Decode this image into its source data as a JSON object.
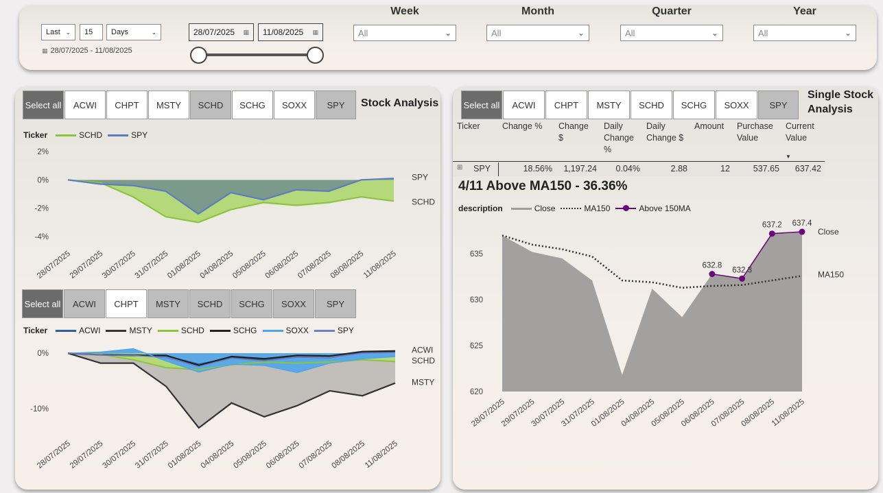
{
  "filters": {
    "relative": {
      "period": "Last",
      "count": "15",
      "unit": "Days",
      "range_text": "28/07/2025 - 11/08/2025"
    },
    "date_from": "28/07/2025",
    "date_to": "11/08/2025",
    "slicers": [
      {
        "title": "Week",
        "value": "All"
      },
      {
        "title": "Month",
        "value": "All"
      },
      {
        "title": "Quarter",
        "value": "All"
      },
      {
        "title": "Year",
        "value": "All"
      }
    ]
  },
  "tickers": [
    "Select all",
    "ACWI",
    "CHPT",
    "MSTY",
    "SCHD",
    "SCHG",
    "SOXX",
    "SPY"
  ],
  "stock_analysis": {
    "title": "Stock Analysis",
    "selected": [
      "SCHD",
      "SPY"
    ],
    "legend_label": "Ticker",
    "chart_data": {
      "type": "area",
      "categories": [
        "28/07/2025",
        "29/07/2025",
        "30/07/2025",
        "31/07/2025",
        "01/08/2025",
        "04/08/2025",
        "05/08/2025",
        "06/08/2025",
        "07/08/2025",
        "08/08/2025",
        "11/08/2025"
      ],
      "y_ticks": [
        "2%",
        "0%",
        "-2%",
        "-4%"
      ],
      "ylim": [
        -4,
        2
      ],
      "series": [
        {
          "name": "SCHD",
          "color": "#8bc53f",
          "values": [
            0,
            -0.2,
            -1.2,
            -2.6,
            -3.0,
            -2.1,
            -1.6,
            -1.8,
            -1.6,
            -1.2,
            -1.5
          ]
        },
        {
          "name": "SPY",
          "color": "#5b7dc0",
          "values": [
            0,
            -0.3,
            -0.4,
            -0.8,
            -2.4,
            -0.9,
            -1.4,
            -0.7,
            -0.8,
            0.0,
            0.1
          ]
        }
      ],
      "end_labels": [
        "SPY",
        "SCHD"
      ]
    }
  },
  "multi_analysis": {
    "selected": [
      "Select all",
      "ACWI",
      "MSTY",
      "SCHD",
      "SCHG",
      "SOXX",
      "SPY"
    ],
    "legend_label": "Ticker",
    "chart_data": {
      "type": "area",
      "categories": [
        "28/07/2025",
        "29/07/2025",
        "30/07/2025",
        "31/07/2025",
        "01/08/2025",
        "04/08/2025",
        "05/08/2025",
        "06/08/2025",
        "07/08/2025",
        "08/08/2025",
        "11/08/2025"
      ],
      "y_ticks": [
        "0%",
        "-10%"
      ],
      "ylim": [
        -14,
        2
      ],
      "series": [
        {
          "name": "ACWI",
          "color": "#2e5f9e",
          "values": [
            0,
            -0.2,
            -0.3,
            -0.5,
            -2.0,
            -0.8,
            -1.2,
            -0.7,
            -0.8,
            0.1,
            0.2
          ]
        },
        {
          "name": "MSTY",
          "color": "#333333",
          "values": [
            0,
            -1.8,
            -1.8,
            -6.0,
            -13.5,
            -9.0,
            -11.5,
            -9.5,
            -6.8,
            -7.7,
            -5.4
          ]
        },
        {
          "name": "SCHD",
          "color": "#8bc53f",
          "values": [
            0,
            -0.2,
            -1.2,
            -2.6,
            -3.0,
            -2.1,
            -1.6,
            -1.8,
            -1.6,
            -1.2,
            -1.5
          ]
        },
        {
          "name": "SCHG",
          "color": "#222222",
          "values": [
            0,
            -0.3,
            -0.4,
            -0.4,
            -2.2,
            -0.6,
            -1.0,
            -0.4,
            -0.5,
            0.3,
            0.4
          ]
        },
        {
          "name": "SOXX",
          "color": "#4ea6ea",
          "values": [
            0,
            0.2,
            0.8,
            -1.4,
            -3.4,
            -2.0,
            -2.2,
            -3.5,
            -1.8,
            -1.0,
            -0.6
          ]
        },
        {
          "name": "SPY",
          "color": "#6f7fc6",
          "values": [
            0,
            -0.3,
            -0.4,
            -0.8,
            -2.4,
            -0.9,
            -1.4,
            -0.7,
            -0.8,
            0.0,
            0.1
          ]
        }
      ],
      "end_labels": [
        "ACWI",
        "SCHD",
        "MSTY"
      ]
    }
  },
  "single_stock": {
    "title": "Single Stock Analysis",
    "selected": "SPY",
    "table": {
      "headers": [
        "Ticker",
        "Change %",
        "Change $",
        "Daily Change %",
        "Daily Change $",
        "Amount",
        "Purchase Value",
        "Current Value"
      ],
      "row": {
        "expand": "⊞",
        "ticker": "SPY",
        "change_pct": "18.56%",
        "change_usd": "1,197.24",
        "daily_change_pct": "0.04%",
        "daily_change_usd": "2.88",
        "amount": "12",
        "purchase_value": "537.65",
        "current_value": "637.42"
      }
    },
    "heading": "4/11 Above MA150 - 36.36%",
    "legend_label": "description",
    "chart_data": {
      "type": "area",
      "categories": [
        "28/07/2025",
        "29/07/2025",
        "30/07/2025",
        "31/07/2025",
        "01/08/2025",
        "04/08/2025",
        "05/08/2025",
        "06/08/2025",
        "07/08/2025",
        "08/08/2025",
        "11/08/2025"
      ],
      "y_ticks": [
        "635",
        "630",
        "625",
        "620"
      ],
      "ylim": [
        620,
        638
      ],
      "series": [
        {
          "name": "Close",
          "color": "#9e9c9a",
          "values": [
            637.0,
            635.2,
            634.5,
            632.1,
            621.8,
            631.2,
            628.1,
            632.8,
            632.3,
            637.2,
            637.4
          ]
        },
        {
          "name": "MA150",
          "color": "#333333",
          "values": [
            637.0,
            636.0,
            635.5,
            634.7,
            632.1,
            631.9,
            631.3,
            631.5,
            631.6,
            632.1,
            632.6
          ]
        },
        {
          "name": "Above 150MA",
          "color": "#6a0a7a",
          "values": [
            null,
            null,
            null,
            null,
            null,
            null,
            null,
            632.8,
            632.3,
            637.2,
            637.4
          ]
        }
      ],
      "point_labels": [
        "632.8",
        "632.3",
        "637.2",
        "637.4"
      ],
      "end_labels": [
        "Close",
        "MA150"
      ]
    }
  }
}
